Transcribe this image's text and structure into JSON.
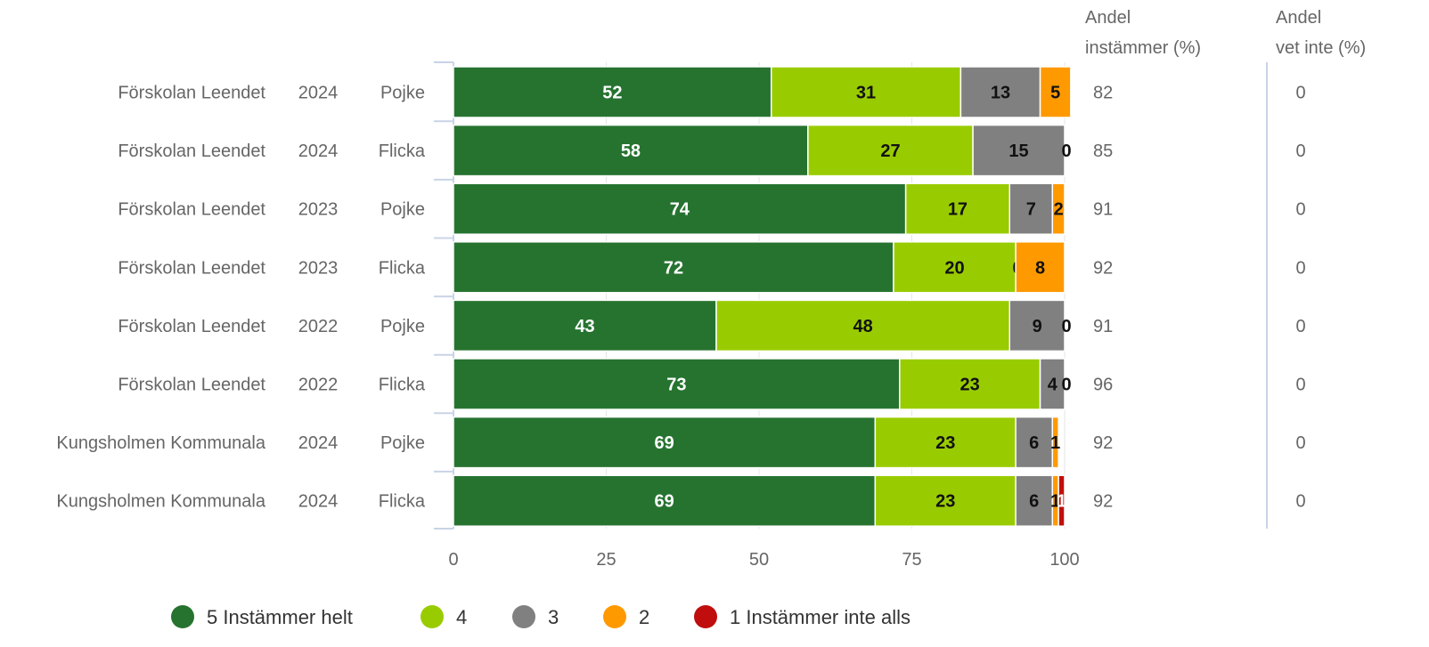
{
  "chart_data": {
    "type": "bar",
    "orientation": "horizontal",
    "stacked": true,
    "xlim": [
      0,
      100
    ],
    "x_ticks": [
      0,
      25,
      50,
      75,
      100
    ],
    "rows": [
      {
        "school": "Förskolan Leendet",
        "year": "2024",
        "gender": "Pojke"
      },
      {
        "school": "Förskolan Leendet",
        "year": "2024",
        "gender": "Flicka"
      },
      {
        "school": "Förskolan Leendet",
        "year": "2023",
        "gender": "Pojke"
      },
      {
        "school": "Förskolan Leendet",
        "year": "2023",
        "gender": "Flicka"
      },
      {
        "school": "Förskolan Leendet",
        "year": "2022",
        "gender": "Pojke"
      },
      {
        "school": "Förskolan Leendet",
        "year": "2022",
        "gender": "Flicka"
      },
      {
        "school": "Kungsholmen Kommunala",
        "year": "2024",
        "gender": "Pojke"
      },
      {
        "school": "Kungsholmen Kommunala",
        "year": "2024",
        "gender": "Flicka"
      }
    ],
    "series": [
      {
        "name": "5 Instämmer helt",
        "color": "#267330",
        "label_color": "#ffffff",
        "values": [
          52,
          58,
          74,
          72,
          43,
          73,
          69,
          69
        ]
      },
      {
        "name": "4",
        "color": "#99cc00",
        "label_color": "#111111",
        "values": [
          31,
          27,
          17,
          20,
          48,
          23,
          23,
          23
        ]
      },
      {
        "name": "3",
        "color": "#808080",
        "label_color": "#111111",
        "values": [
          13,
          15,
          7,
          0,
          9,
          4,
          6,
          6
        ]
      },
      {
        "name": "2",
        "color": "#ff9900",
        "label_color": "#111111",
        "values": [
          5,
          0,
          2,
          8,
          0,
          0,
          1,
          1
        ]
      },
      {
        "name": "1 Instämmer inte alls",
        "color": "#c00d0d",
        "label_color": "#ffffff",
        "values": [
          0,
          0,
          0,
          0,
          0,
          0,
          0,
          1
        ]
      }
    ],
    "extra_columns": [
      {
        "header_line1": "Andel",
        "header_line2": "instämmer (%)",
        "values": [
          "82",
          "85",
          "91",
          "92",
          "91",
          "96",
          "92",
          "92"
        ]
      },
      {
        "header_line1": "Andel",
        "header_line2": "vet inte (%)",
        "values": [
          "0",
          "0",
          "0",
          "0",
          "0",
          "0",
          "0",
          "0"
        ]
      }
    ],
    "legend_position": "bottom"
  }
}
